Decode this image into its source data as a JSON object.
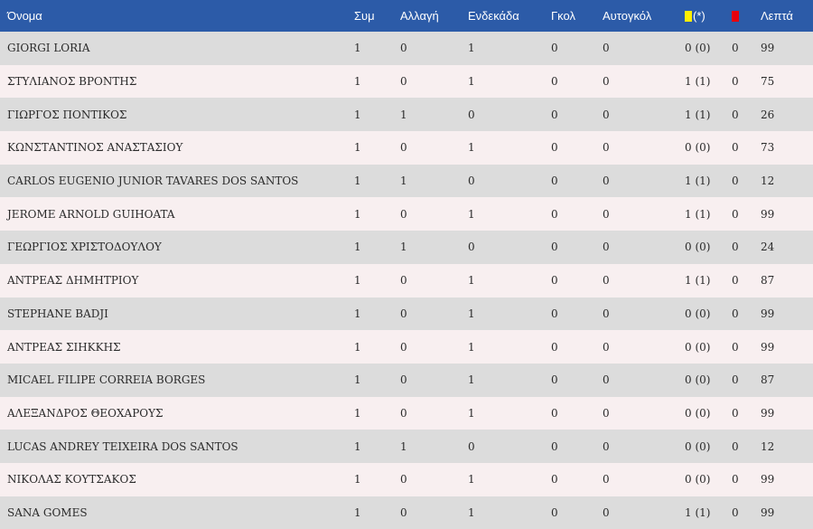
{
  "columns": {
    "name": "Όνομα",
    "apps": "Συμ",
    "sub": "Αλλαγή",
    "lineup": "Ενδεκάδα",
    "goals": "Γκολ",
    "own_goals": "Αυτογκόλ",
    "yellow_suffix": "(*)",
    "minutes": "Λεπτά"
  },
  "colors": {
    "header_bg": "#2c5ba8",
    "yellow_card": "#ffee00",
    "red_card": "#e8000b"
  },
  "icons": {
    "yellow": "yellow-card-icon",
    "red": "red-card-icon"
  },
  "players": [
    {
      "name": "GIORGI LORIA",
      "apps": "1",
      "sub": "0",
      "lineup": "1",
      "goals": "0",
      "own_goals": "0",
      "yellow": "0 (0)",
      "red": "0",
      "minutes": "99"
    },
    {
      "name": "ΣΤΥΛΙΑΝΟΣ ΒΡΟΝΤΗΣ",
      "apps": "1",
      "sub": "0",
      "lineup": "1",
      "goals": "0",
      "own_goals": "0",
      "yellow": "1 (1)",
      "red": "0",
      "minutes": "75"
    },
    {
      "name": "ΓΙΩΡΓΟΣ ΠΟΝΤΙΚΟΣ",
      "apps": "1",
      "sub": "1",
      "lineup": "0",
      "goals": "0",
      "own_goals": "0",
      "yellow": "1 (1)",
      "red": "0",
      "minutes": "26"
    },
    {
      "name": "ΚΩΝΣΤΑΝΤΙΝΟΣ ΑΝΑΣΤΑΣΙΟΥ",
      "apps": "1",
      "sub": "0",
      "lineup": "1",
      "goals": "0",
      "own_goals": "0",
      "yellow": "0 (0)",
      "red": "0",
      "minutes": "73"
    },
    {
      "name": "CARLOS EUGENIO JUNIOR TAVARES DOS SANTOS",
      "apps": "1",
      "sub": "1",
      "lineup": "0",
      "goals": "0",
      "own_goals": "0",
      "yellow": "1 (1)",
      "red": "0",
      "minutes": "12"
    },
    {
      "name": "JEROME ARNOLD GUIHOATA",
      "apps": "1",
      "sub": "0",
      "lineup": "1",
      "goals": "0",
      "own_goals": "0",
      "yellow": "1 (1)",
      "red": "0",
      "minutes": "99"
    },
    {
      "name": "ΓΕΩΡΓΙΟΣ ΧΡΙΣΤΟΔΟΥΛΟΥ",
      "apps": "1",
      "sub": "1",
      "lineup": "0",
      "goals": "0",
      "own_goals": "0",
      "yellow": "0 (0)",
      "red": "0",
      "minutes": "24"
    },
    {
      "name": "ΑΝΤΡΕΑΣ ΔΗΜΗΤΡΙΟΥ",
      "apps": "1",
      "sub": "0",
      "lineup": "1",
      "goals": "0",
      "own_goals": "0",
      "yellow": "1 (1)",
      "red": "0",
      "minutes": "87"
    },
    {
      "name": "STEPHANE BADJI",
      "apps": "1",
      "sub": "0",
      "lineup": "1",
      "goals": "0",
      "own_goals": "0",
      "yellow": "0 (0)",
      "red": "0",
      "minutes": "99"
    },
    {
      "name": "ΑΝΤΡΕΑΣ ΣΙΗΚΚΗΣ",
      "apps": "1",
      "sub": "0",
      "lineup": "1",
      "goals": "0",
      "own_goals": "0",
      "yellow": "0 (0)",
      "red": "0",
      "minutes": "99"
    },
    {
      "name": "MICAEL FILIPE CORREIA BORGES",
      "apps": "1",
      "sub": "0",
      "lineup": "1",
      "goals": "0",
      "own_goals": "0",
      "yellow": "0 (0)",
      "red": "0",
      "minutes": "87"
    },
    {
      "name": "ΑΛΕΞΑΝΔΡΟΣ ΘΕΟΧΑΡΟΥΣ",
      "apps": "1",
      "sub": "0",
      "lineup": "1",
      "goals": "0",
      "own_goals": "0",
      "yellow": "0 (0)",
      "red": "0",
      "minutes": "99"
    },
    {
      "name": "LUCAS ANDREY TEIXEIRA DOS SANTOS",
      "apps": "1",
      "sub": "1",
      "lineup": "0",
      "goals": "0",
      "own_goals": "0",
      "yellow": "0 (0)",
      "red": "0",
      "minutes": "12"
    },
    {
      "name": "ΝΙΚΟΛΑΣ ΚΟΥΤΣΑΚΟΣ",
      "apps": "1",
      "sub": "0",
      "lineup": "1",
      "goals": "0",
      "own_goals": "0",
      "yellow": "0 (0)",
      "red": "0",
      "minutes": "99"
    },
    {
      "name": "SANA GOMES",
      "apps": "1",
      "sub": "0",
      "lineup": "1",
      "goals": "0",
      "own_goals": "0",
      "yellow": "1 (1)",
      "red": "0",
      "minutes": "99"
    }
  ]
}
